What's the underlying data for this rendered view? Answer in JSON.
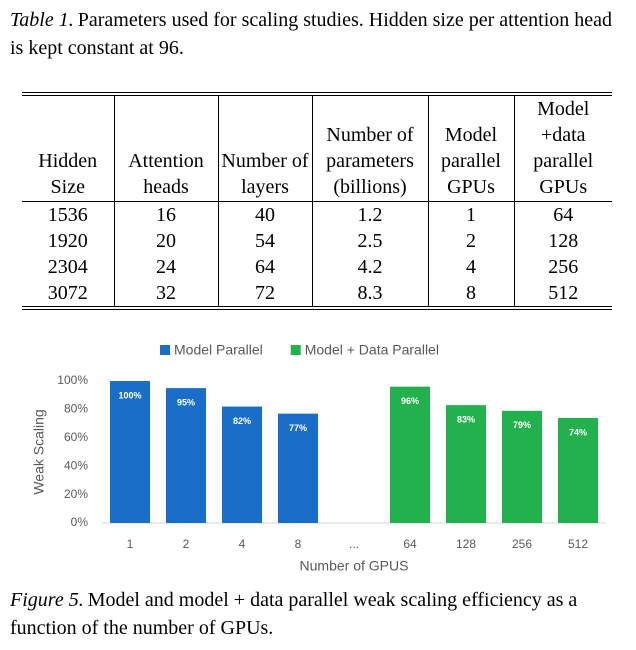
{
  "table_caption": {
    "label": "Table 1.",
    "text": "Parameters used for scaling studies. Hidden size per attention head is kept constant at 96."
  },
  "table": {
    "header": [
      "Hidden Size",
      "Attention heads",
      "Number of layers",
      "Number of parameters (billions)",
      "Model parallel GPUs",
      "Model +data parallel GPUs"
    ],
    "rows": [
      [
        1536,
        16,
        40,
        1.2,
        1,
        64
      ],
      [
        1920,
        20,
        54,
        2.5,
        2,
        128
      ],
      [
        2304,
        24,
        64,
        4.2,
        4,
        256
      ],
      [
        3072,
        32,
        72,
        8.3,
        8,
        512
      ]
    ]
  },
  "chart_data": {
    "type": "bar",
    "xlabel": "Number of GPUS",
    "ylabel": "Weak Scaling",
    "categories": [
      "1",
      "2",
      "4",
      "8",
      "...",
      "64",
      "128",
      "256",
      "512"
    ],
    "series": [
      {
        "name": "Model Parallel",
        "color": "#1b6ec8",
        "values": [
          100,
          95,
          82,
          77,
          null,
          null,
          null,
          null,
          null
        ],
        "value_labels": [
          "100%",
          "95%",
          "82%",
          "77%",
          null,
          null,
          null,
          null,
          null
        ]
      },
      {
        "name": "Model + Data Parallel",
        "color": "#22b14c",
        "values": [
          null,
          null,
          null,
          null,
          null,
          96,
          83,
          79,
          74
        ],
        "value_labels": [
          null,
          null,
          null,
          null,
          null,
          "96%",
          "83%",
          "79%",
          "74%"
        ]
      }
    ],
    "ylim": [
      0,
      100
    ],
    "yticks": [
      {
        "value": 0,
        "label": "0%"
      },
      {
        "value": 20,
        "label": "20%"
      },
      {
        "value": 40,
        "label": "40%"
      },
      {
        "value": 60,
        "label": "60%"
      },
      {
        "value": 80,
        "label": "80%"
      },
      {
        "value": 100,
        "label": "100%"
      }
    ],
    "grid": false,
    "legend": "top"
  },
  "figure_caption": {
    "label": "Figure 5.",
    "text": "Model and model + data parallel weak scaling efficiency as a function of the number of GPUs."
  }
}
